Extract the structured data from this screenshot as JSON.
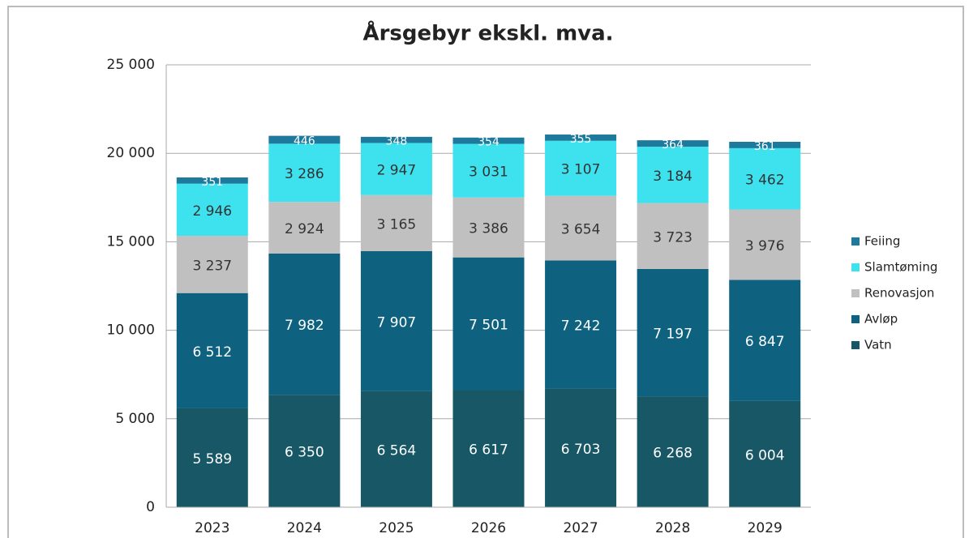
{
  "chart_data": {
    "type": "stacked_bar",
    "title": "Årsgebyr ekskl. mva.",
    "categories": [
      "2023",
      "2024",
      "2025",
      "2026",
      "2027",
      "2028",
      "2029"
    ],
    "series": [
      {
        "name": "Vatn",
        "color": "#175766",
        "label_color": "#ffffff",
        "values": [
          5589,
          6350,
          6564,
          6617,
          6703,
          6268,
          6004
        ],
        "value_labels": [
          "5 589",
          "6 350",
          "6 564",
          "6 617",
          "6 703",
          "6 268",
          "6 004"
        ]
      },
      {
        "name": "Avløp",
        "color": "#0e6280",
        "label_color": "#ffffff",
        "values": [
          6512,
          7982,
          7907,
          7501,
          7242,
          7197,
          6847
        ],
        "value_labels": [
          "6 512",
          "7 982",
          "7 907",
          "7 501",
          "7 242",
          "7 197",
          "6 847"
        ]
      },
      {
        "name": "Renovasjon",
        "color": "#c0c0c0",
        "label_color": "#333333",
        "values": [
          3237,
          2924,
          3165,
          3386,
          3654,
          3723,
          3976
        ],
        "value_labels": [
          "3 237",
          "2 924",
          "3 165",
          "3 386",
          "3 654",
          "3 723",
          "3 976"
        ]
      },
      {
        "name": "Slamtøming",
        "color": "#3ee2ee",
        "label_color": "#333333",
        "values": [
          2946,
          3286,
          2947,
          3031,
          3107,
          3184,
          3462
        ],
        "value_labels": [
          "2 946",
          "3 286",
          "2 947",
          "3 031",
          "3 107",
          "3 184",
          "3 462"
        ]
      },
      {
        "name": "Feiing",
        "color": "#1d7a9c",
        "label_color": "#ffffff",
        "values": [
          351,
          446,
          348,
          354,
          355,
          364,
          361
        ]
      }
    ],
    "ylim": [
      0,
      25000
    ],
    "yticks": [
      0,
      {
        "value": 5000,
        "label": "5 000"
      },
      {
        "value": 10000,
        "label": "10 000"
      },
      {
        "value": 15000,
        "label": "15 000"
      },
      {
        "value": 20000,
        "label": "20 000"
      },
      {
        "value": 25000,
        "label": "25 000"
      }
    ],
    "grid": true,
    "legend": "right"
  }
}
